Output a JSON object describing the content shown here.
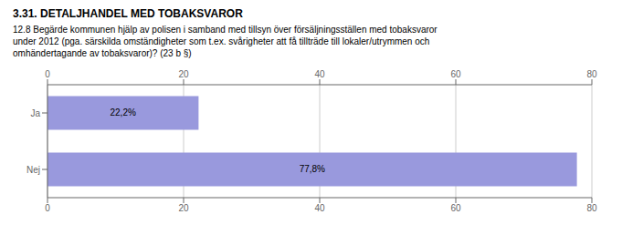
{
  "chart_data": {
    "type": "bar",
    "title": "3.31. DETALJHANDEL MED TOBAKSVAROR",
    "subtitle": "12.8 Begärde kommunen hjälp av polisen i samband med tillsyn över försäljningsställen med tobaksvaror\nunder 2012 (pga. särskilda omständigheter som t.ex. svårigheter att få tillträde till lokaler/utrymmen och\nomhändertagande av tobaksvaror)? (23 b §)",
    "categories": [
      "Ja",
      "Nej"
    ],
    "values": [
      22.2,
      77.8
    ],
    "value_labels": [
      "22,2%",
      "77,8%"
    ],
    "color": "#9999dd",
    "orientation": "horizontal",
    "xlim": [
      0,
      80
    ],
    "xticks": [
      0,
      20,
      40,
      60,
      80
    ],
    "grid": true,
    "data_labels": true
  }
}
